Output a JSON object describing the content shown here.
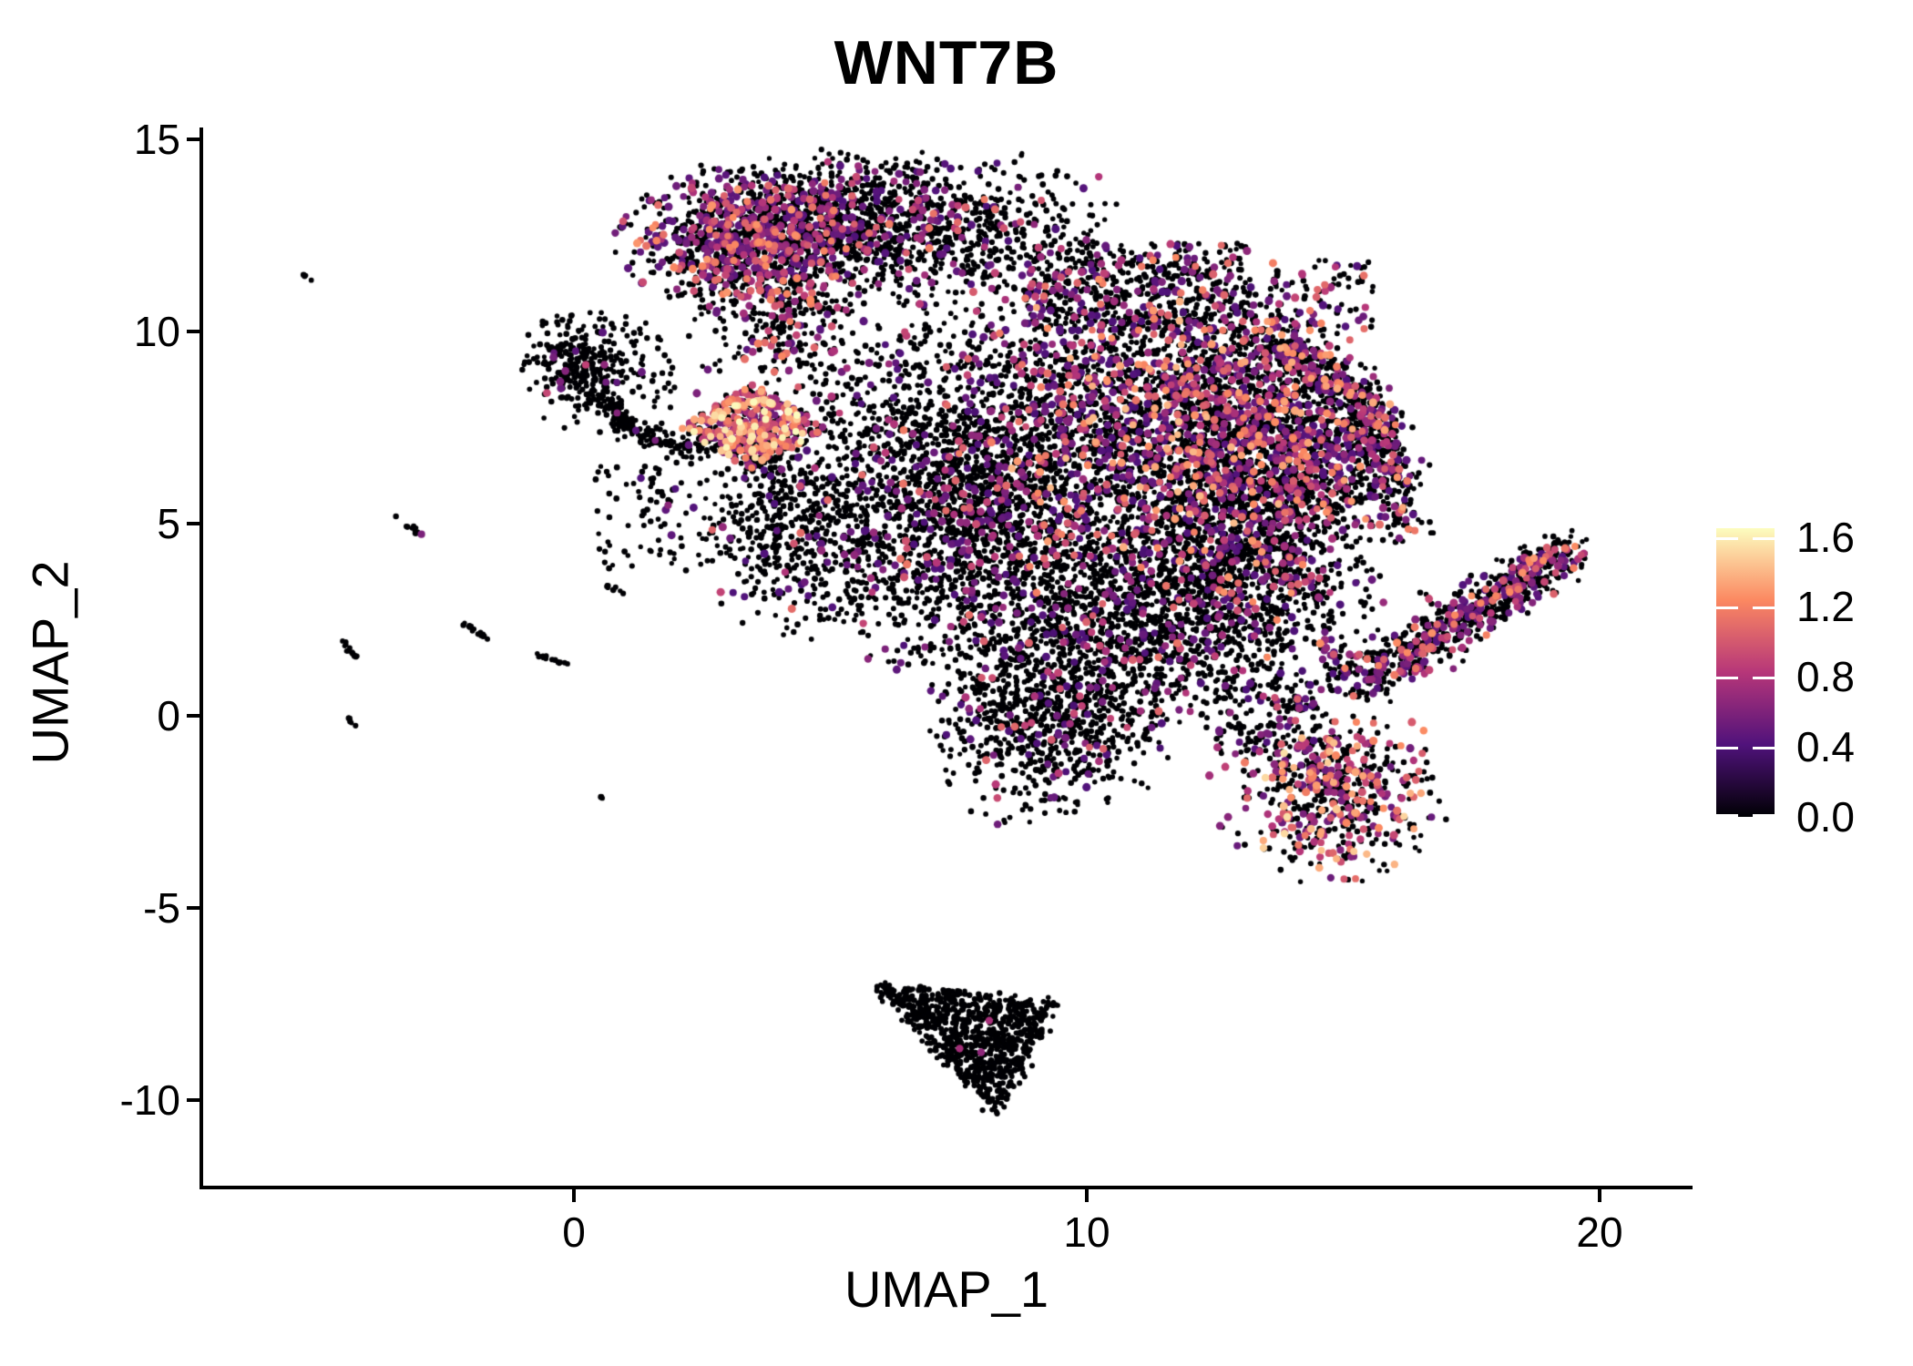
{
  "title": "WNT7B",
  "axes": {
    "x_label": "UMAP_1",
    "y_label": "UMAP_2",
    "x_ticks": [
      "0",
      "10",
      "20"
    ],
    "x_tick_values": [
      0,
      10,
      20
    ],
    "y_ticks": [
      "15",
      "10",
      "5",
      "0",
      "-5",
      "-10"
    ],
    "y_tick_values": [
      15,
      10,
      5,
      0,
      -5,
      -10
    ]
  },
  "colorbar": {
    "tick_labels": [
      "1.6",
      "1.2",
      "0.8",
      "0.4",
      "0.0"
    ],
    "tick_values": [
      1.6,
      1.2,
      0.8,
      0.4,
      0.0
    ],
    "gradient_stops": [
      "#000004",
      "#50127b",
      "#b63679",
      "#fb8861",
      "#fcfdbf"
    ]
  },
  "chart_data": {
    "type": "scatter",
    "title": "WNT7B",
    "xlabel": "UMAP_1",
    "ylabel": "UMAP_2",
    "xlim": [
      -7.3,
      21.8
    ],
    "ylim": [
      -12.2,
      15.3
    ],
    "grid": false,
    "legend_position": "right",
    "colormap": "magma",
    "color_domain": [
      0,
      1.65
    ],
    "seed": 1234,
    "point_radius": {
      "zero": 3.0,
      "expressed": 4.2
    },
    "clusters": [
      {
        "name": "top-left-lobe",
        "kind": "gauss",
        "n": 900,
        "cx": 3.3,
        "cy": 12.3,
        "sx": 1.05,
        "sy": 0.9,
        "frac": 0.4,
        "vb": 0.45,
        "vs": 0.85,
        "vg": 1.9
      },
      {
        "name": "top-right-lobe",
        "kind": "gauss",
        "n": 1050,
        "cx": 5.4,
        "cy": 12.9,
        "sx": 1.45,
        "sy": 0.8,
        "frac": 0.17,
        "vb": 0.4,
        "vs": 0.8,
        "vg": 2.2
      },
      {
        "name": "top-right-tail",
        "kind": "gauss",
        "n": 300,
        "cx": 8.5,
        "cy": 12.4,
        "sx": 1.1,
        "sy": 0.95,
        "frac": 0.1,
        "vb": 0.4,
        "vs": 0.7,
        "vg": 2.2
      },
      {
        "name": "top-tail-down",
        "kind": "gauss",
        "n": 260,
        "cx": 4.3,
        "cy": 10.0,
        "sx": 0.65,
        "sy": 1.0,
        "frac": 0.3,
        "vb": 0.45,
        "vs": 0.8,
        "vg": 1.8
      },
      {
        "name": "hook-block",
        "kind": "gauss",
        "n": 270,
        "cx": 0.15,
        "cy": 9.2,
        "sx": 0.5,
        "sy": 0.6,
        "frac": 0.035,
        "vb": 0.45,
        "vs": 0.5,
        "vg": 2
      },
      {
        "name": "hook-tail",
        "kind": "arc",
        "x1": 0.55,
        "y1": 8.35,
        "cx": 1.1,
        "cy": 7.0,
        "x2": 2.7,
        "y2": 6.9,
        "w": 0.22,
        "n": 190,
        "frac": 0.03,
        "vb": 0.45,
        "vs": 0.5,
        "vg": 2
      },
      {
        "name": "hook-halo",
        "kind": "gauss",
        "n": 90,
        "cx": 1.1,
        "cy": 8.8,
        "sx": 0.85,
        "sy": 0.8,
        "frac": 0.05,
        "vb": 0.45,
        "vs": 0.5,
        "vg": 2
      },
      {
        "name": "bright-cluster",
        "kind": "gauss",
        "n": 540,
        "cx": 3.5,
        "cy": 7.5,
        "sx": 1.0,
        "sy": 0.75,
        "shape": "diamond",
        "dw": 1.45,
        "dh": 1.15,
        "frac": 0.58,
        "vb": 0.5,
        "vs": 1.15,
        "vg": 1.25
      },
      {
        "name": "sparse-mid-left",
        "kind": "box",
        "x1": 0.4,
        "y1": 3.6,
        "x2": 4.3,
        "y2": 6.6,
        "n": 150,
        "frac": 0.07,
        "vb": 0.4,
        "vs": 0.6,
        "vg": 2
      },
      {
        "name": "main-left",
        "kind": "gauss",
        "n": 1900,
        "cx": 7.4,
        "cy": 5.6,
        "sx": 1.5,
        "sy": 1.95,
        "frac": 0.13,
        "vb": 0.4,
        "vs": 0.8,
        "vg": 2.2
      },
      {
        "name": "main-left-edge",
        "kind": "gauss",
        "n": 380,
        "cx": 4.2,
        "cy": 5.0,
        "sx": 0.8,
        "sy": 1.35,
        "frac": 0.1,
        "vb": 0.4,
        "vs": 0.7,
        "vg": 2.2
      },
      {
        "name": "main-upper-central",
        "kind": "gauss",
        "n": 2400,
        "cx": 11.3,
        "cy": 7.8,
        "sx": 1.85,
        "sy": 1.75,
        "frac": 0.3,
        "vb": 0.38,
        "vs": 1.05,
        "vg": 2.0
      },
      {
        "name": "main-top-band",
        "kind": "box",
        "x1": 8.8,
        "y1": 10.0,
        "x2": 13.2,
        "y2": 12.3,
        "n": 450,
        "frac": 0.25,
        "vb": 0.4,
        "vs": 0.9,
        "vg": 2
      },
      {
        "name": "nw-sparse-patch",
        "kind": "box",
        "x1": 13.6,
        "y1": 10.0,
        "x2": 15.6,
        "y2": 11.9,
        "n": 90,
        "frac": 0.3,
        "vb": 0.42,
        "vs": 0.8,
        "vg": 2
      },
      {
        "name": "claw-arc",
        "kind": "arc",
        "x1": 13.4,
        "y1": 9.8,
        "cx": 15.9,
        "cy": 8.7,
        "x2": 16.2,
        "y2": 4.9,
        "w": 0.45,
        "n": 450,
        "frac": 0.35,
        "vb": 0.42,
        "vs": 0.95,
        "vg": 1.8
      },
      {
        "name": "main-right",
        "kind": "gauss",
        "n": 1250,
        "cx": 13.8,
        "cy": 6.7,
        "sx": 1.15,
        "sy": 1.35,
        "frac": 0.26,
        "vb": 0.4,
        "vs": 0.95,
        "vg": 2
      },
      {
        "name": "main-lower-central",
        "kind": "gauss",
        "n": 1500,
        "cx": 10.6,
        "cy": 2.5,
        "sx": 1.75,
        "sy": 1.5,
        "frac": 0.12,
        "vb": 0.38,
        "vs": 0.8,
        "vg": 2.2
      },
      {
        "name": "main-lower-right",
        "kind": "gauss",
        "n": 900,
        "cx": 13.1,
        "cy": 3.7,
        "sx": 1.25,
        "sy": 1.3,
        "frac": 0.18,
        "vb": 0.4,
        "vs": 0.9,
        "vg": 2
      },
      {
        "name": "bottom-tongue",
        "kind": "gauss",
        "n": 640,
        "cx": 9.2,
        "cy": -0.3,
        "sx": 1.05,
        "sy": 1.15,
        "frac": 0.1,
        "vb": 0.4,
        "vs": 0.7,
        "vg": 2.2
      },
      {
        "name": "low-bridge",
        "kind": "box",
        "x1": 12.5,
        "y1": -1.0,
        "x2": 14.5,
        "y2": 1.0,
        "n": 120,
        "frac": 0.15,
        "vb": 0.4,
        "vs": 0.8,
        "vg": 2
      },
      {
        "name": "right-wing",
        "kind": "line",
        "x1": 15.75,
        "y1": 1.15,
        "x2": 19.45,
        "y2": 4.35,
        "w": 0.62,
        "n": 700,
        "frac": 0.3,
        "vb": 0.42,
        "vs": 0.9,
        "vg": 1.9
      },
      {
        "name": "wing-bridge",
        "kind": "box",
        "x1": 14.6,
        "y1": 0.5,
        "x2": 15.9,
        "y2": 1.7,
        "n": 90,
        "frac": 0.15,
        "vb": 0.4,
        "vs": 0.8,
        "vg": 2
      },
      {
        "name": "bottom-right-blob",
        "kind": "gauss",
        "n": 620,
        "cx": 14.75,
        "cy": -1.85,
        "sx": 1.0,
        "sy": 1.1,
        "frac": 0.42,
        "vb": 0.5,
        "vs": 1.05,
        "vg": 1.4
      },
      {
        "name": "bottom-middle-triangle",
        "kind": "tri",
        "ax": 5.75,
        "ay": -6.95,
        "bx": 9.45,
        "by": -7.45,
        "tx": 8.25,
        "ty": -10.45,
        "n": 860,
        "frac": 0.006,
        "vb": 0.5,
        "vs": 0.3,
        "vg": 1
      },
      {
        "name": "gap-sparse",
        "kind": "box",
        "x1": 5.8,
        "y1": 9.0,
        "x2": 8.6,
        "y2": 12.0,
        "n": 120,
        "frac": 0.08,
        "vb": 0.4,
        "vs": 0.7,
        "vg": 2
      },
      {
        "name": "mid-gap-sparse",
        "kind": "box",
        "x1": 4.6,
        "y1": 6.6,
        "x2": 6.8,
        "y2": 9.2,
        "n": 70,
        "frac": 0.1,
        "vb": 0.4,
        "vs": 0.7,
        "vg": 2
      },
      {
        "name": "streak-upper-left",
        "kind": "line",
        "x1": -5.25,
        "y1": 11.45,
        "x2": -5.0,
        "y2": 11.2,
        "w": 0.05,
        "n": 4,
        "frac": 0
      },
      {
        "name": "streak-a",
        "kind": "line",
        "x1": -3.45,
        "y1": 5.15,
        "x2": -2.95,
        "y2": 4.7,
        "w": 0.06,
        "n": 13,
        "frac": 0.08,
        "vb": 0.5,
        "vs": 0.3,
        "vg": 1
      },
      {
        "name": "streak-b1",
        "kind": "line",
        "x1": -2.2,
        "y1": 2.45,
        "x2": -1.95,
        "y2": 2.2,
        "w": 0.05,
        "n": 8,
        "frac": 0
      },
      {
        "name": "streak-b2",
        "kind": "line",
        "x1": -1.85,
        "y1": 2.2,
        "x2": -1.65,
        "y2": 1.95,
        "w": 0.05,
        "n": 7,
        "frac": 0
      },
      {
        "name": "streak-c",
        "kind": "line",
        "x1": -4.55,
        "y1": 1.95,
        "x2": -4.25,
        "y2": 1.5,
        "w": 0.06,
        "n": 12,
        "frac": 0.09,
        "vb": 0.5,
        "vs": 0.3,
        "vg": 1
      },
      {
        "name": "streak-d",
        "kind": "line",
        "x1": -0.75,
        "y1": 1.6,
        "x2": -0.2,
        "y2": 1.35,
        "w": 0.07,
        "n": 14,
        "frac": 0
      },
      {
        "name": "streak-e",
        "kind": "line",
        "x1": -4.4,
        "y1": -0.05,
        "x2": -4.25,
        "y2": -0.25,
        "w": 0.05,
        "n": 6,
        "frac": 0.18,
        "vb": 0.5,
        "vs": 0.3,
        "vg": 1
      },
      {
        "name": "dot-pair-low",
        "kind": "line",
        "x1": 0.45,
        "y1": -2.05,
        "x2": 0.55,
        "y2": -2.15,
        "w": 0.04,
        "n": 3,
        "frac": 0.3,
        "vb": 0.5,
        "vs": 0.3,
        "vg": 1
      },
      {
        "name": "streak-f",
        "kind": "line",
        "x1": 0.5,
        "y1": 3.45,
        "x2": 0.95,
        "y2": 3.2,
        "w": 0.06,
        "n": 8,
        "frac": 0
      }
    ]
  }
}
